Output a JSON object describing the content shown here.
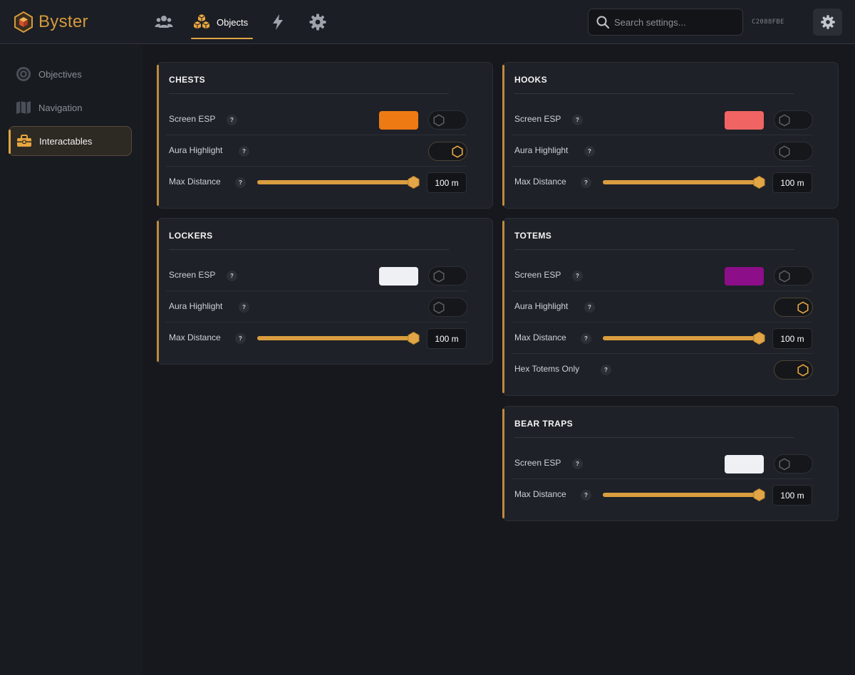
{
  "app": {
    "name": "Byster",
    "hwid": "C2088FBE",
    "accent": "#e0a445"
  },
  "header": {
    "tabs": [
      {
        "icon": "users-icon",
        "label": ""
      },
      {
        "icon": "cubes-icon",
        "label": "Objects",
        "active": true
      },
      {
        "icon": "bolt-icon",
        "label": ""
      },
      {
        "icon": "gear-icon",
        "label": ""
      }
    ],
    "search": {
      "placeholder": "Search settings..."
    }
  },
  "sidebar": {
    "items": [
      {
        "icon": "target-icon",
        "label": "Objectives"
      },
      {
        "icon": "map-icon",
        "label": "Navigation"
      },
      {
        "icon": "toolbox-icon",
        "label": "Interactables",
        "active": true
      }
    ]
  },
  "labels": {
    "screen_esp": "Screen ESP",
    "aura_highlight": "Aura Highlight",
    "max_distance": "Max Distance",
    "hex_totems_only": "Hex Totems Only",
    "help": "?"
  },
  "cards": {
    "chests": {
      "title": "CHESTS",
      "esp_color": "#ee7a14",
      "screen_esp": false,
      "aura_highlight": true,
      "max_distance": "100 m",
      "distance_fraction": 1.0
    },
    "hooks": {
      "title": "HOOKS",
      "esp_color": "#f06464",
      "screen_esp": false,
      "aura_highlight": false,
      "max_distance": "100 m",
      "distance_fraction": 1.0
    },
    "lockers": {
      "title": "LOCKERS",
      "esp_color": "#eef0f3",
      "screen_esp": false,
      "aura_highlight": false,
      "max_distance": "100 m",
      "distance_fraction": 1.0
    },
    "totems": {
      "title": "TOTEMS",
      "esp_color": "#8c0e88",
      "screen_esp": false,
      "aura_highlight": true,
      "max_distance": "100 m",
      "distance_fraction": 1.0,
      "hex_totems_only": true
    },
    "bear_traps": {
      "title": "BEAR TRAPS",
      "esp_color": "#eef0f3",
      "screen_esp": false,
      "max_distance": "100 m",
      "distance_fraction": 1.0
    }
  }
}
